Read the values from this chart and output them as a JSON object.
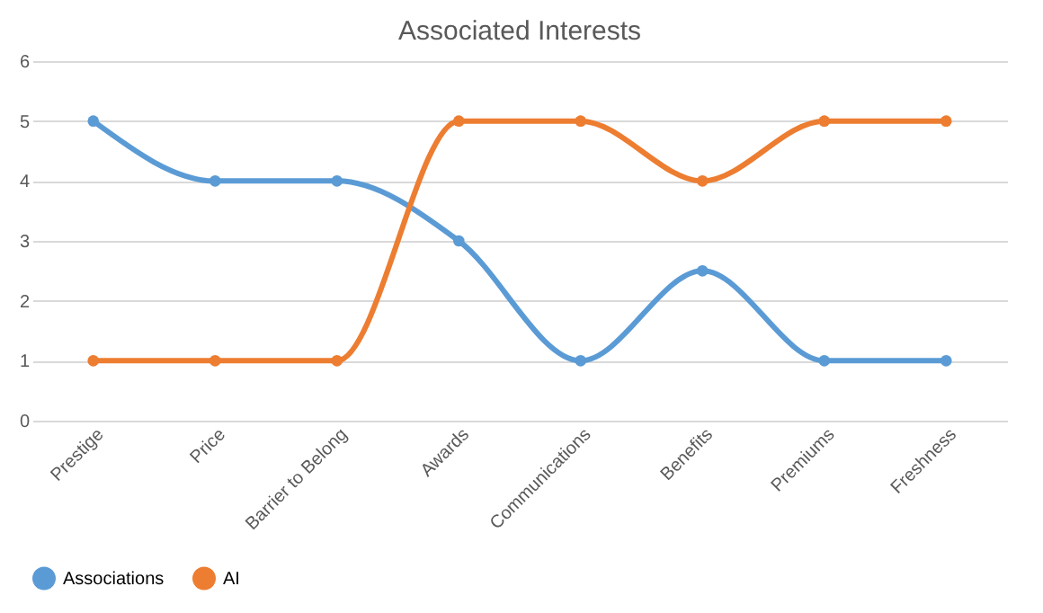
{
  "chart_data": {
    "type": "line",
    "title": "Associated Interests",
    "categories": [
      "Prestige",
      "Price",
      "Barrier to Belong",
      "Awards",
      "Communications",
      "Benefits",
      "Premiums",
      "Freshness"
    ],
    "series": [
      {
        "name": "Associations",
        "color": "#5b9bd5",
        "values": [
          5,
          4,
          4,
          3,
          1,
          2.5,
          1,
          1
        ]
      },
      {
        "name": "AI",
        "color": "#ed7d31",
        "values": [
          1,
          1,
          1,
          5,
          5,
          4,
          5,
          5
        ]
      }
    ],
    "ylim": [
      0,
      6
    ],
    "yticks": [
      0,
      1,
      2,
      3,
      4,
      5,
      6
    ],
    "grid": "y",
    "legend": "bottom",
    "marker": "circle",
    "line_style": "solid"
  }
}
